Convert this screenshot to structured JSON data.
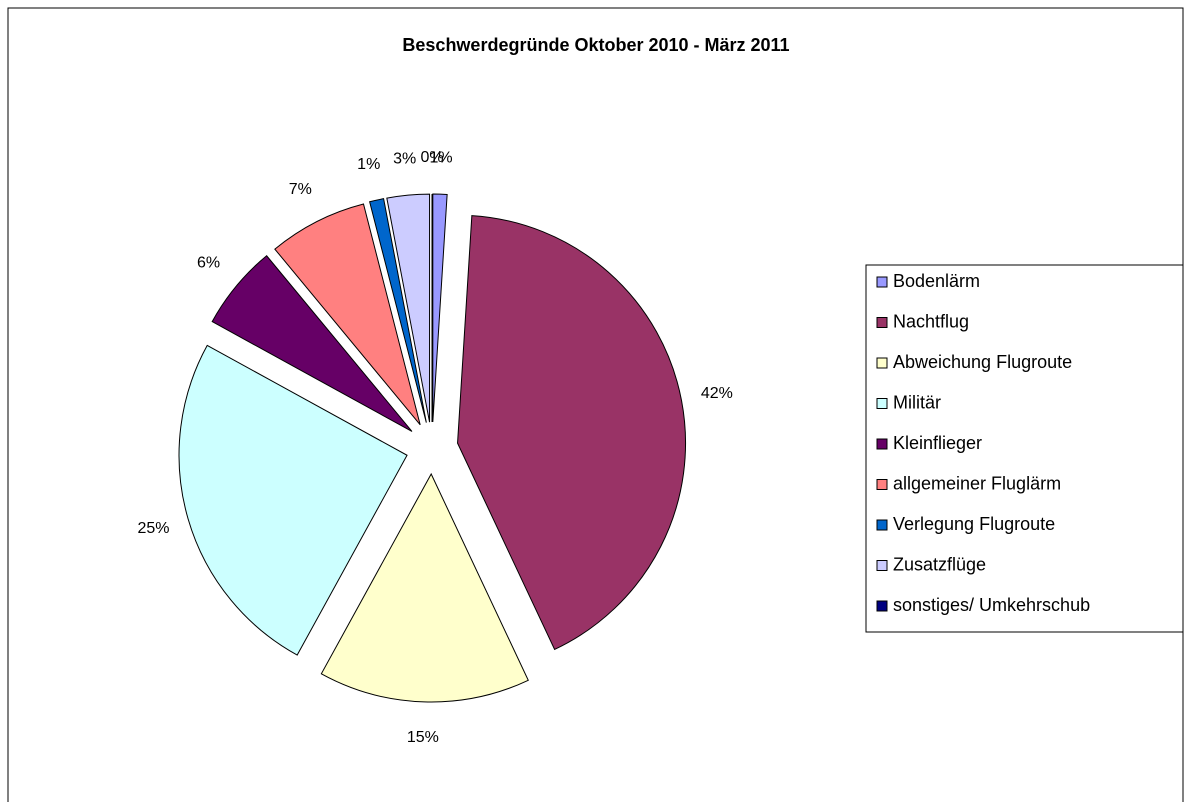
{
  "chart_data": {
    "type": "pie",
    "title": "Beschwerdegründe Oktober 2010 - März 2011",
    "categories": [
      "Bodenlärm",
      "Nachtflug",
      "Abweichung Flugroute",
      "Militär",
      "Kleinflieger",
      "allgemeiner Fluglärm",
      "Verlegung Flugroute",
      "Zusatzflüge",
      "sonstiges/ Umkehrschub"
    ],
    "values": [
      1,
      42,
      15,
      25,
      6,
      7,
      1,
      3,
      0
    ],
    "value_labels": [
      "1%",
      "42%",
      "15%",
      "25%",
      "6%",
      "7%",
      "1%",
      "3%",
      "0%"
    ],
    "colors": [
      "#9999ff",
      "#993366",
      "#ffffcc",
      "#ccffff",
      "#660066",
      "#ff8080",
      "#0066cc",
      "#ccccff",
      "#000080"
    ],
    "legend": "right"
  }
}
